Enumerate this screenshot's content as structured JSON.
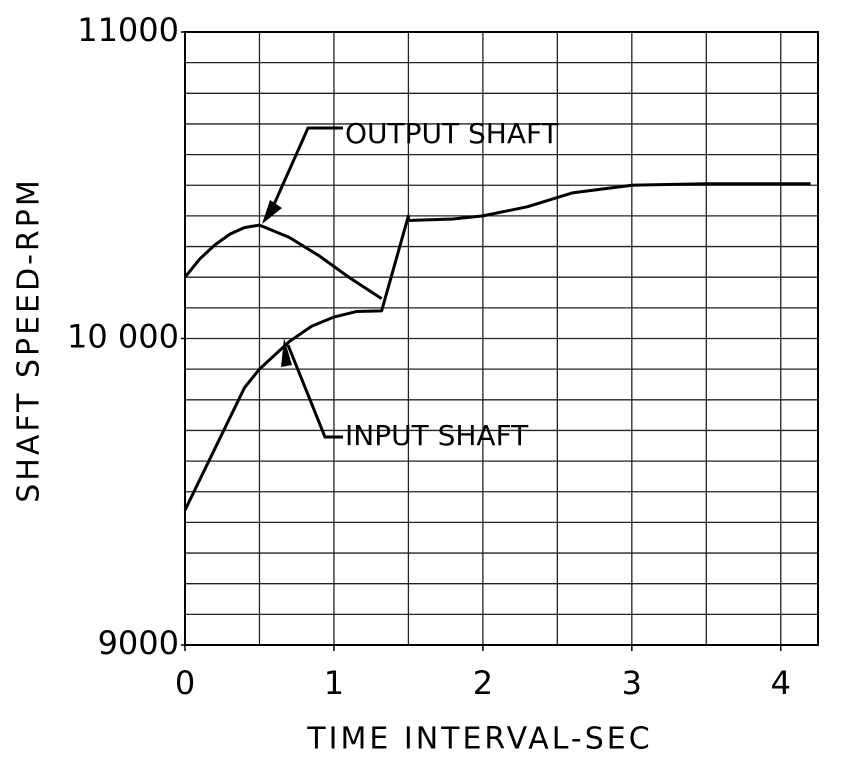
{
  "chart_data": {
    "type": "line",
    "xlabel": "TIME INTERVAL-SEC",
    "ylabel": "SHAFT SPEED-RPM",
    "xlim": [
      0,
      4.25
    ],
    "ylim": [
      9000,
      11000
    ],
    "xticks": [
      0,
      1,
      2,
      3,
      4
    ],
    "yticks": [
      9000,
      {
        "value": 10000,
        "label": "10 000"
      },
      11000
    ],
    "xgrid": [
      0.5,
      1,
      1.5,
      2,
      2.5,
      3,
      3.5,
      4
    ],
    "ygrid": [
      9100,
      9200,
      9300,
      9400,
      9500,
      9600,
      9700,
      9800,
      9900,
      10000,
      10100,
      10200,
      10300,
      10400,
      10500,
      10600,
      10700,
      10800,
      10900
    ],
    "series": [
      {
        "name": "OUTPUT SHAFT",
        "color": "#000000",
        "x": [
          0,
          0.1,
          0.2,
          0.3,
          0.4,
          0.5,
          0.7,
          0.9,
          1.1,
          1.32
        ],
        "values": [
          10200,
          10260,
          10305,
          10340,
          10362,
          10370,
          10330,
          10270,
          10200,
          10130
        ]
      },
      {
        "name": "INPUT SHAFT",
        "color": "#000000",
        "x": [
          0,
          0.2,
          0.4,
          0.5,
          0.7,
          0.85,
          1.0,
          1.15,
          1.32,
          1.5,
          1.5,
          1.8,
          2.0,
          2.3,
          2.6,
          3.0,
          3.5,
          4.2
        ],
        "values": [
          9440,
          9640,
          9840,
          9900,
          9990,
          10040,
          10070,
          10088,
          10090,
          10400,
          10385,
          10390,
          10400,
          10430,
          10475,
          10500,
          10505,
          10505
        ]
      }
    ]
  }
}
